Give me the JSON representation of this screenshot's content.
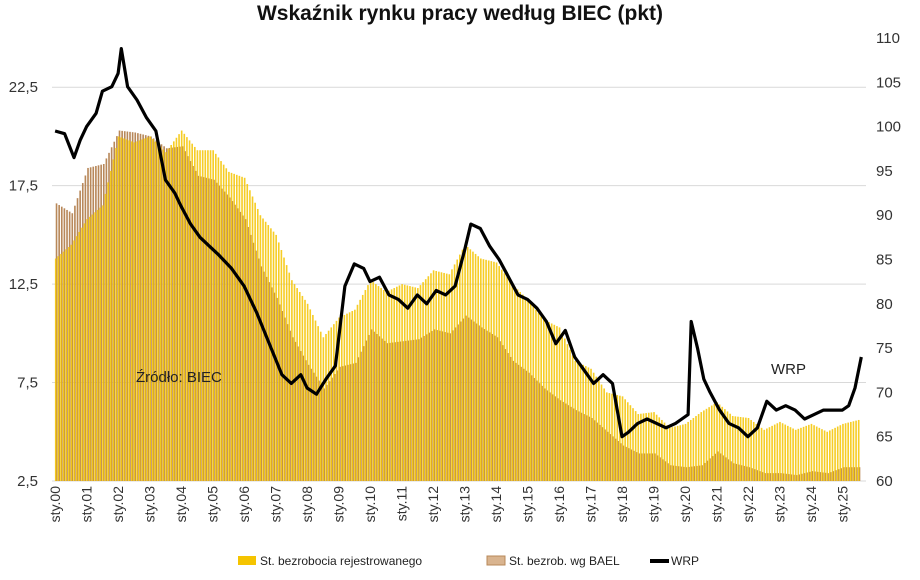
{
  "chart_data": {
    "type": "bar",
    "title": "Wskaźnik rynku pracy według BIEC (pkt)",
    "y_left": {
      "range": [
        2.5,
        25
      ],
      "ticks": [
        "2,5",
        "7,5",
        "12,5",
        "17,5",
        "22,5"
      ],
      "tick_values": [
        2.5,
        7.5,
        12.5,
        17.5,
        22.5
      ]
    },
    "y_right": {
      "range": [
        60,
        110
      ],
      "ticks": [
        "60",
        "65",
        "70",
        "75",
        "80",
        "85",
        "90",
        "95",
        "100",
        "105",
        "110"
      ],
      "tick_values": [
        60,
        65,
        70,
        75,
        80,
        85,
        90,
        95,
        100,
        105,
        110
      ]
    },
    "x_ticks": [
      "sty.00",
      "sty.01",
      "sty.02",
      "sty.03",
      "sty.04",
      "sty.05",
      "sty.06",
      "sty.07",
      "sty.08",
      "sty.09",
      "sty.10",
      "sty.11",
      "sty.12",
      "sty.13",
      "sty.14",
      "sty.15",
      "sty.16",
      "sty.17",
      "sty.18",
      "sty.19",
      "sty.20",
      "sty.21",
      "sty.22",
      "sty.23",
      "sty.24",
      "sty.25"
    ],
    "grid": "horizontal",
    "legend_position": "bottom",
    "annotations": [
      "Źródło: BIEC",
      "WRP"
    ],
    "series": [
      {
        "name": "St. bezrobocia rejestrowanego",
        "axis": "left",
        "type": "bar",
        "color": "#f5c400",
        "x": [
          2000,
          2000.5,
          2001,
          2001.5,
          2002,
          2002.5,
          2003,
          2003.5,
          2004,
          2004.5,
          2005,
          2005.5,
          2006,
          2006.5,
          2007,
          2007.5,
          2008,
          2008.5,
          2009,
          2009.5,
          2010,
          2010.5,
          2011,
          2011.5,
          2012,
          2012.5,
          2013,
          2013.5,
          2014,
          2014.5,
          2015,
          2015.5,
          2016,
          2016.5,
          2017,
          2017.5,
          2018,
          2018.5,
          2019,
          2019.5,
          2020,
          2020.5,
          2021,
          2021.5,
          2022,
          2022.5,
          2023,
          2023.5,
          2024,
          2024.5,
          2025,
          2025.5
        ],
        "values": [
          13.8,
          14.5,
          15.8,
          16.5,
          20.0,
          19.7,
          20.0,
          19.2,
          20.3,
          19.3,
          19.3,
          18.2,
          17.9,
          16.0,
          15.0,
          12.7,
          11.5,
          9.8,
          10.8,
          11.2,
          12.7,
          12.1,
          12.5,
          12.3,
          13.2,
          13.0,
          14.5,
          13.8,
          13.6,
          12.5,
          11.7,
          10.7,
          10.3,
          8.6,
          8.2,
          7.0,
          6.8,
          5.9,
          6.0,
          5.2,
          5.4,
          6.0,
          6.5,
          5.8,
          5.7,
          5.1,
          5.5,
          5.1,
          5.4,
          5.0,
          5.4,
          5.6
        ]
      },
      {
        "name": "St. bezrob. wg BAEL",
        "axis": "left",
        "type": "bar",
        "color": "#b8885a",
        "x": [
          2000,
          2000.5,
          2001,
          2001.5,
          2002,
          2002.5,
          2003,
          2003.5,
          2004,
          2004.5,
          2005,
          2005.5,
          2006,
          2006.5,
          2007,
          2007.5,
          2008,
          2008.5,
          2009,
          2009.5,
          2010,
          2010.5,
          2011,
          2011.5,
          2012,
          2012.5,
          2013,
          2013.5,
          2014,
          2014.5,
          2015,
          2015.5,
          2016,
          2016.5,
          2017,
          2017.5,
          2018,
          2018.5,
          2019,
          2019.5,
          2020,
          2020.5,
          2021,
          2021.5,
          2022,
          2022.5,
          2023,
          2023.5,
          2024,
          2024.5,
          2025,
          2025.5
        ],
        "values": [
          16.6,
          16.1,
          18.4,
          18.6,
          20.3,
          20.2,
          20.0,
          19.4,
          19.5,
          18.0,
          17.8,
          16.9,
          15.8,
          13.4,
          11.8,
          9.8,
          8.4,
          7.2,
          8.3,
          8.5,
          10.2,
          9.5,
          9.6,
          9.7,
          10.2,
          10.0,
          10.9,
          10.3,
          9.8,
          8.6,
          8.0,
          7.2,
          6.6,
          6.1,
          5.7,
          5.0,
          4.3,
          3.9,
          3.9,
          3.3,
          3.2,
          3.3,
          4.0,
          3.4,
          3.2,
          2.9,
          2.9,
          2.8,
          3.0,
          2.9,
          3.2,
          3.2
        ]
      },
      {
        "name": "WRP",
        "axis": "right",
        "type": "line",
        "color": "#000000",
        "x": [
          2000,
          2000.3,
          2000.6,
          2000.8,
          2001,
          2001.3,
          2001.5,
          2001.8,
          2002,
          2002.1,
          2002.3,
          2002.6,
          2002.9,
          2003.2,
          2003.5,
          2003.8,
          2004,
          2004.3,
          2004.6,
          2004.9,
          2005.2,
          2005.6,
          2006,
          2006.4,
          2006.8,
          2007.2,
          2007.5,
          2007.8,
          2008,
          2008.3,
          2008.6,
          2008.9,
          2009.2,
          2009.5,
          2009.8,
          2010,
          2010.3,
          2010.6,
          2010.9,
          2011.2,
          2011.5,
          2011.8,
          2012.1,
          2012.4,
          2012.7,
          2013,
          2013.2,
          2013.5,
          2013.8,
          2014.1,
          2014.4,
          2014.7,
          2015,
          2015.3,
          2015.6,
          2015.9,
          2016.2,
          2016.5,
          2016.8,
          2017.1,
          2017.4,
          2017.7,
          2018,
          2018.2,
          2018.5,
          2018.8,
          2019.1,
          2019.4,
          2019.7,
          2019.9,
          2020.1,
          2020.2,
          2020.4,
          2020.6,
          2020.8,
          2021.1,
          2021.4,
          2021.7,
          2022,
          2022.3,
          2022.6,
          2022.9,
          2023.2,
          2023.5,
          2023.8,
          2024.1,
          2024.4,
          2024.7,
          2025,
          2025.2,
          2025.4,
          2025.6
        ],
        "values": [
          99.5,
          99.2,
          96.5,
          98.5,
          100.0,
          101.5,
          104.0,
          104.5,
          106.0,
          108.8,
          104.5,
          103.0,
          101.0,
          99.5,
          94.0,
          92.5,
          91.0,
          89.0,
          87.5,
          86.5,
          85.5,
          84.0,
          82.0,
          79.0,
          75.5,
          72.0,
          71.0,
          72.0,
          70.5,
          69.8,
          71.5,
          73.0,
          82.0,
          84.5,
          84.0,
          82.5,
          83.0,
          81.0,
          80.5,
          79.5,
          81.0,
          80.0,
          81.5,
          81.0,
          82.0,
          86.0,
          89.0,
          88.5,
          86.5,
          85.0,
          83.0,
          81.0,
          80.5,
          79.5,
          78.0,
          75.5,
          77.0,
          74.0,
          72.5,
          71.0,
          72.0,
          71.0,
          65.0,
          65.5,
          66.5,
          67.0,
          66.5,
          66.0,
          66.5,
          67.0,
          67.5,
          78.0,
          75.0,
          71.5,
          70.0,
          68.0,
          66.5,
          66.0,
          65.0,
          66.0,
          69.0,
          68.0,
          68.5,
          68.0,
          67.0,
          67.5,
          68.0,
          68.0,
          68.0,
          68.5,
          70.5,
          74.0
        ]
      }
    ]
  }
}
